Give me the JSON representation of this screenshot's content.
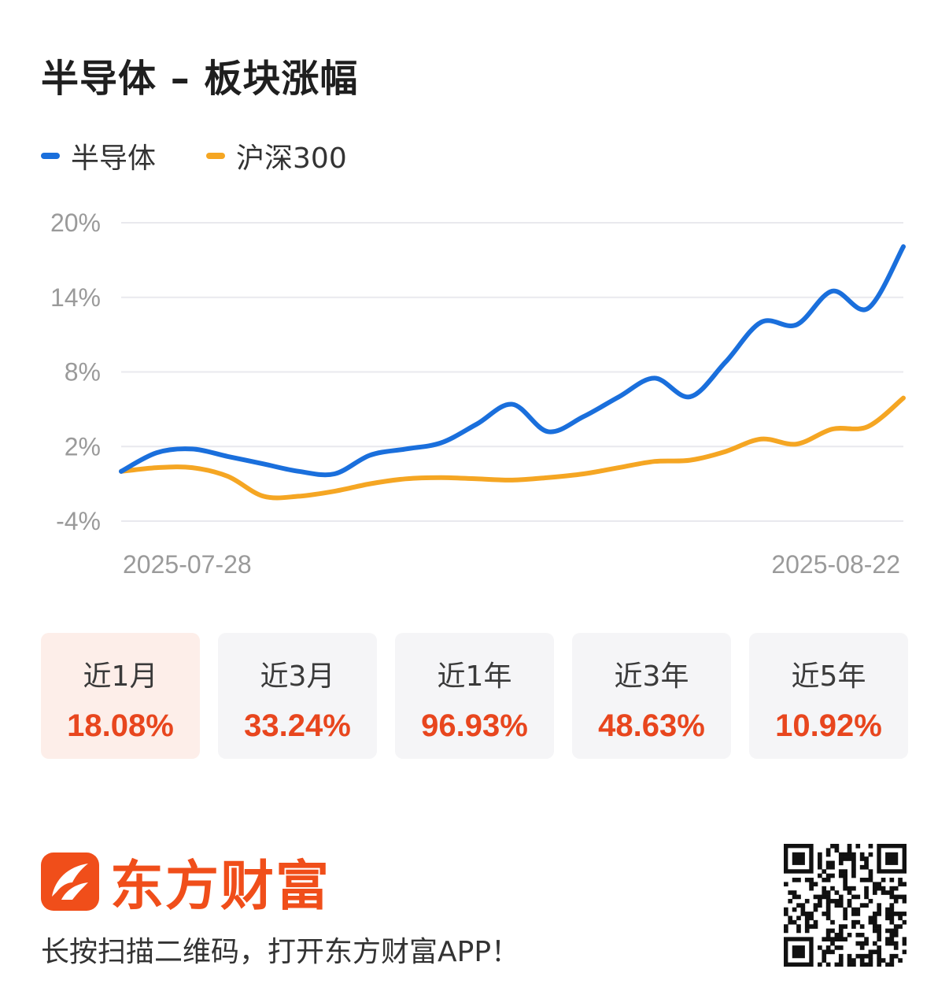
{
  "title": "半导体 – 板块涨幅",
  "colors": {
    "series_1": "#1a6fdc",
    "series_2": "#f5a623",
    "grid": "#e9e9ee",
    "up": "#e8461e",
    "brand": "#f04e1a"
  },
  "chart_data": {
    "type": "line",
    "title": "",
    "xlabel": "",
    "ylabel": "",
    "x_start_label": "2025-07-28",
    "x_end_label": "2025-08-22",
    "y_ticks": [
      "20%",
      "14%",
      "8%",
      "2%",
      "-4%"
    ],
    "y_tick_values": [
      20,
      14,
      8,
      2,
      -4
    ],
    "ylim": [
      -4,
      20
    ],
    "legend_position": "top-left",
    "grid": true,
    "series": [
      {
        "name": "半导体",
        "color": "#1a6fdc",
        "values": [
          0.0,
          1.5,
          1.8,
          1.2,
          0.6,
          0.0,
          -0.2,
          1.3,
          1.8,
          2.3,
          3.8,
          5.4,
          3.2,
          4.4,
          6.0,
          7.5,
          6.0,
          8.8,
          12.0,
          11.8,
          14.5,
          13.1,
          18.08
        ]
      },
      {
        "name": "沪深300",
        "color": "#f5a623",
        "values": [
          0.0,
          0.3,
          0.3,
          -0.4,
          -2.0,
          -2.0,
          -1.6,
          -1.0,
          -0.6,
          -0.5,
          -0.6,
          -0.7,
          -0.5,
          -0.2,
          0.3,
          0.8,
          0.9,
          1.6,
          2.6,
          2.2,
          3.4,
          3.6,
          5.9
        ]
      }
    ]
  },
  "periods": [
    {
      "label": "近1月",
      "value": "18.08%"
    },
    {
      "label": "近3月",
      "value": "33.24%"
    },
    {
      "label": "近1年",
      "value": "96.93%"
    },
    {
      "label": "近3年",
      "value": "48.63%"
    },
    {
      "label": "近5年",
      "value": "10.92%"
    }
  ],
  "brand": {
    "name": "东方财富",
    "logo_icon": "eastmoney-logo-icon",
    "tagline": "长按扫描二维码，打开东方财富APP！",
    "qr_icon": "qr-code-icon"
  }
}
